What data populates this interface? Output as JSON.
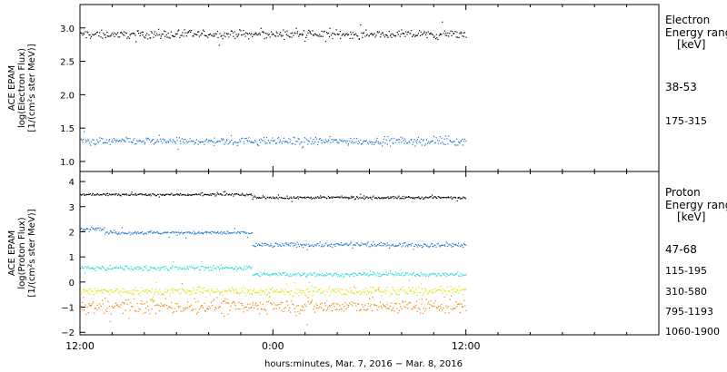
{
  "chart_data": [
    {
      "type": "scatter",
      "ylabel_lines": [
        "ACE EPAM",
        "log(Electron Flux)",
        "[1/(cm²s ster MeV)]"
      ],
      "ylim": [
        0.85,
        3.35
      ],
      "yticks": [
        1.0,
        1.5,
        2.0,
        2.5,
        3.0
      ],
      "ytick_labels": [
        "1.0",
        "1.5",
        "2.0",
        "2.5",
        "3.0"
      ],
      "legend_title": [
        "Electron",
        "Energy ranges",
        "[keV]"
      ],
      "legend_color": "#000000",
      "series": [
        {
          "name": "38-53",
          "color": "#000000",
          "segments": [
            {
              "from": 0,
              "to": 24,
              "mean": 2.91,
              "jitter": 0.05
            }
          ]
        },
        {
          "name": "175-315",
          "color": "#1a75d2",
          "segments": [
            {
              "from": 0,
              "to": 24,
              "mean": 1.31,
              "jitter": 0.05
            }
          ]
        }
      ]
    },
    {
      "type": "scatter",
      "ylabel_lines": [
        "ACE EPAM",
        "log(Proton Flux)",
        "[1/(cm²s ster MeV)]"
      ],
      "ylim": [
        -2.1,
        4.4
      ],
      "yticks": [
        -2,
        -1,
        0,
        1,
        2,
        3,
        4
      ],
      "ytick_labels": [
        "−2",
        "−1",
        "0",
        "1",
        "2",
        "3",
        "4"
      ],
      "legend_title": [
        "Proton",
        "Energy ranges",
        "[keV]"
      ],
      "legend_color": "#000000",
      "series": [
        {
          "name": "47-68",
          "color": "#000000",
          "segments": [
            {
              "from": 0,
              "to": 10.7,
              "mean": 3.5,
              "jitter": 0.04
            },
            {
              "from": 10.7,
              "to": 24,
              "mean": 3.38,
              "jitter": 0.05
            }
          ]
        },
        {
          "name": "115-195",
          "color": "#1a75d2",
          "segments": [
            {
              "from": 0,
              "to": 1.5,
              "mean": 2.15,
              "jitter": 0.06
            },
            {
              "from": 1.5,
              "to": 10.7,
              "mean": 1.98,
              "jitter": 0.06
            },
            {
              "from": 10.7,
              "to": 24,
              "mean": 1.5,
              "jitter": 0.08
            }
          ]
        },
        {
          "name": "310-580",
          "color": "#22d8d8",
          "segments": [
            {
              "from": 0,
              "to": 10.7,
              "mean": 0.58,
              "jitter": 0.08
            },
            {
              "from": 10.7,
              "to": 24,
              "mean": 0.32,
              "jitter": 0.07
            }
          ]
        },
        {
          "name": "795-1193",
          "color": "#d9e000",
          "segments": [
            {
              "from": 0,
              "to": 24,
              "mean": -0.35,
              "jitter": 0.15
            }
          ]
        },
        {
          "name": "1060-1900",
          "color": "#f07f00",
          "segments": [
            {
              "from": 0,
              "to": 24,
              "mean": -0.95,
              "jitter": 0.25
            }
          ]
        }
      ]
    }
  ],
  "x_axis": {
    "range_hours": [
      0,
      36
    ],
    "data_end_hours": 24,
    "labeled_ticks": [
      {
        "hours": 0,
        "label": "12:00"
      },
      {
        "hours": 12,
        "label": "0:00"
      },
      {
        "hours": 24,
        "label": "12:00"
      }
    ],
    "minor_tick_step_hours": 2,
    "xlabel": "hours:minutes, Mar.  7, 2016 − Mar.  8, 2016"
  }
}
